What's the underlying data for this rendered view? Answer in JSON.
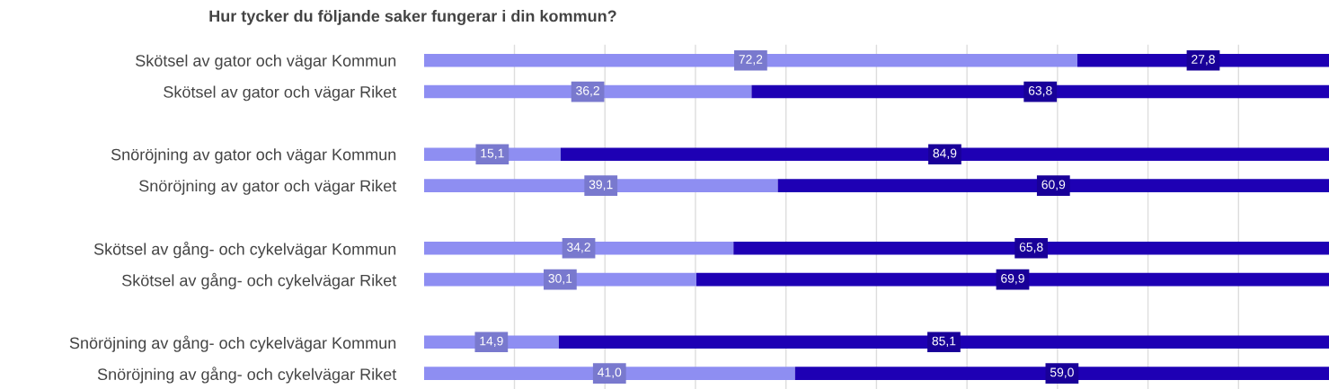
{
  "chart_data": {
    "type": "bar",
    "orientation": "horizontal",
    "stacked": true,
    "title": "Hur tycker du följande saker fungerar i din kommun?",
    "categories": [
      "Skötsel av gator och vägar Kommun",
      "Skötsel av gator och vägar Riket",
      null,
      "Snöröjning av gator och vägar Kommun",
      "Snöröjning av gator och vägar Riket",
      null,
      "Skötsel av gång- och cykelvägar Kommun",
      "Skötsel av gång- och cykelvägar Riket",
      null,
      "Snöröjning av gång- och cykelvägar Kommun",
      "Snöröjning av gång- och cykelvägar Riket"
    ],
    "series": [
      {
        "color": "#8e8ef2",
        "values": [
          72.2,
          36.2,
          null,
          15.1,
          39.1,
          null,
          34.2,
          30.1,
          null,
          14.9,
          41.0
        ],
        "value_labels": [
          "72,2",
          "36,2",
          null,
          "15,1",
          "39,1",
          null,
          "34,2",
          "30,1",
          null,
          "14,9",
          "41,0"
        ]
      },
      {
        "color": "#1e00b4",
        "values": [
          27.8,
          63.8,
          null,
          84.9,
          60.9,
          null,
          65.8,
          69.9,
          null,
          85.1,
          59.0
        ],
        "value_labels": [
          "27,8",
          "63,8",
          null,
          "84,9",
          "60,9",
          null,
          "65,8",
          "69,9",
          null,
          "85,1",
          "59,0"
        ]
      }
    ],
    "xlim": [
      0,
      100
    ],
    "xticks": [
      {
        "value": 10,
        "label": null
      },
      {
        "value": 20,
        "label": null
      },
      {
        "value": 30,
        "label": null
      },
      {
        "value": 40,
        "label": null
      },
      {
        "value": 50,
        "label": null
      },
      {
        "value": 60,
        "label": null
      },
      {
        "value": 70,
        "label": null
      },
      {
        "value": 80,
        "label": null
      },
      {
        "value": 90,
        "label": null
      }
    ],
    "grid": "x",
    "tick_labels": "y",
    "legend": false
  }
}
